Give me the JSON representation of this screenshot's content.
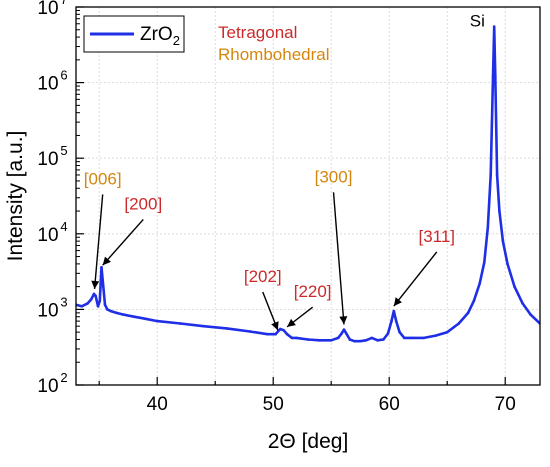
{
  "chart_data": {
    "type": "line",
    "xlabel": "2Θ [deg]",
    "ylabel": "Intensity [a.u.]",
    "xlim": [
      33,
      73
    ],
    "ylim": [
      100,
      10000000
    ],
    "y_scale": "log",
    "grid": true,
    "legend_position": "top-left",
    "x_ticks": [
      "40",
      "50",
      "60",
      "70"
    ],
    "y_tick_exponents": [
      "2",
      "3",
      "4",
      "5",
      "6",
      "7"
    ],
    "y_tick_base": "10",
    "series": [
      {
        "name": "ZrO2",
        "color": "#1f2fe6",
        "x": [
          33.0,
          33.5,
          34.0,
          34.3,
          34.55,
          34.7,
          34.9,
          35.05,
          35.2,
          35.35,
          35.5,
          35.7,
          36.0,
          36.5,
          37.0,
          38.0,
          39.0,
          40.0,
          42.0,
          44.0,
          46.0,
          48.0,
          49.5,
          50.2,
          50.6,
          50.9,
          51.2,
          51.6,
          52.0,
          53.0,
          54.0,
          55.0,
          55.6,
          55.9,
          56.1,
          56.3,
          56.6,
          57.0,
          57.5,
          58.0,
          58.5,
          59.0,
          59.5,
          59.9,
          60.2,
          60.4,
          60.6,
          60.9,
          61.3,
          62.0,
          63.0,
          64.0,
          65.0,
          66.0,
          66.8,
          67.3,
          67.8,
          68.2,
          68.5,
          68.75,
          68.95,
          69.05,
          69.15,
          69.3,
          69.5,
          69.8,
          70.2,
          70.8,
          71.5,
          72.2,
          73.0
        ],
        "values": [
          1150,
          1100,
          1200,
          1350,
          1600,
          1500,
          1100,
          1300,
          3600,
          2000,
          1150,
          1000,
          950,
          900,
          860,
          800,
          750,
          700,
          650,
          600,
          560,
          510,
          470,
          470,
          550,
          530,
          470,
          420,
          420,
          400,
          390,
          390,
          420,
          480,
          540,
          480,
          400,
          380,
          380,
          390,
          420,
          390,
          400,
          480,
          700,
          950,
          700,
          500,
          420,
          420,
          420,
          450,
          500,
          650,
          900,
          1300,
          2200,
          4200,
          12000,
          60000,
          1200000,
          5500000,
          1200000,
          60000,
          20000,
          8000,
          4000,
          2000,
          1200,
          850,
          650
        ]
      }
    ],
    "annotations": [
      {
        "text": "Si",
        "color": "#000000",
        "x": 67.6,
        "y": 5500000
      },
      {
        "text": "[006]",
        "color": "#d4870f",
        "x": 35.3,
        "y": 45000,
        "target_x": 34.6,
        "target_y": 1650
      },
      {
        "text": "[200]",
        "color": "#cc2a2a",
        "x": 38.8,
        "y": 21000,
        "target_x": 35.3,
        "target_y": 3400
      },
      {
        "text": "[202]",
        "color": "#cc2a2a",
        "x": 49.1,
        "y": 2300,
        "target_x": 50.4,
        "target_y": 470
      },
      {
        "text": "[220]",
        "color": "#cc2a2a",
        "x": 53.4,
        "y": 1450,
        "target_x": 51.2,
        "target_y": 520
      },
      {
        "text": "[300]",
        "color": "#d4870f",
        "x": 55.2,
        "y": 48000,
        "target_x": 56.1,
        "target_y": 560
      },
      {
        "text": "[311]",
        "color": "#cc2a2a",
        "x": 64.1,
        "y": 7800,
        "target_x": 60.4,
        "target_y": 980
      }
    ],
    "phase_labels": [
      {
        "text": "Tetragonal",
        "color": "#cc2a2a"
      },
      {
        "text": "Rhombohedral",
        "color": "#d4870f"
      }
    ]
  }
}
